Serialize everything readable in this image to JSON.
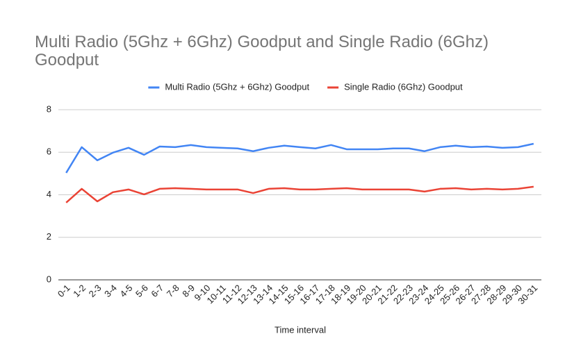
{
  "chart_data": {
    "type": "line",
    "title": "Multi Radio (5Ghz + 6Ghz) Goodput and Single Radio (6Ghz) Goodput",
    "x_label": "Time interval",
    "categories": [
      "0-1",
      "1-2",
      "2-3",
      "3-4",
      "4-5",
      "5-6",
      "6-7",
      "7-8",
      "8-9",
      "9-10",
      "10-11",
      "11-12",
      "12-13",
      "13-14",
      "14-15",
      "15-16",
      "16-17",
      "17-18",
      "18-19",
      "19-20",
      "20-21",
      "21-22",
      "22-23",
      "23-24",
      "24-25",
      "25-26",
      "26-27",
      "27-28",
      "28-29",
      "29-30",
      "30-31"
    ],
    "series": [
      {
        "name": "Multi Radio (5Ghz + 6Ghz) Goodput",
        "color": "#4285f4",
        "values": [
          5.03,
          6.24,
          5.62,
          5.98,
          6.21,
          5.88,
          6.27,
          6.24,
          6.34,
          6.24,
          6.21,
          6.18,
          6.05,
          6.21,
          6.31,
          6.24,
          6.18,
          6.34,
          6.14,
          6.14,
          6.14,
          6.18,
          6.18,
          6.05,
          6.24,
          6.31,
          6.24,
          6.27,
          6.21,
          6.24,
          6.4
        ]
      },
      {
        "name": "Single Radio (6Ghz) Goodput",
        "color": "#ea4335",
        "values": [
          3.63,
          4.28,
          3.69,
          4.12,
          4.25,
          4.02,
          4.28,
          4.31,
          4.28,
          4.25,
          4.25,
          4.25,
          4.08,
          4.28,
          4.31,
          4.25,
          4.25,
          4.28,
          4.31,
          4.25,
          4.25,
          4.25,
          4.25,
          4.15,
          4.28,
          4.31,
          4.25,
          4.28,
          4.25,
          4.28,
          4.38
        ]
      }
    ],
    "ylim": [
      0,
      8
    ],
    "yticks": [
      0,
      2,
      4,
      6,
      8
    ],
    "grid": true,
    "legend": "top"
  }
}
